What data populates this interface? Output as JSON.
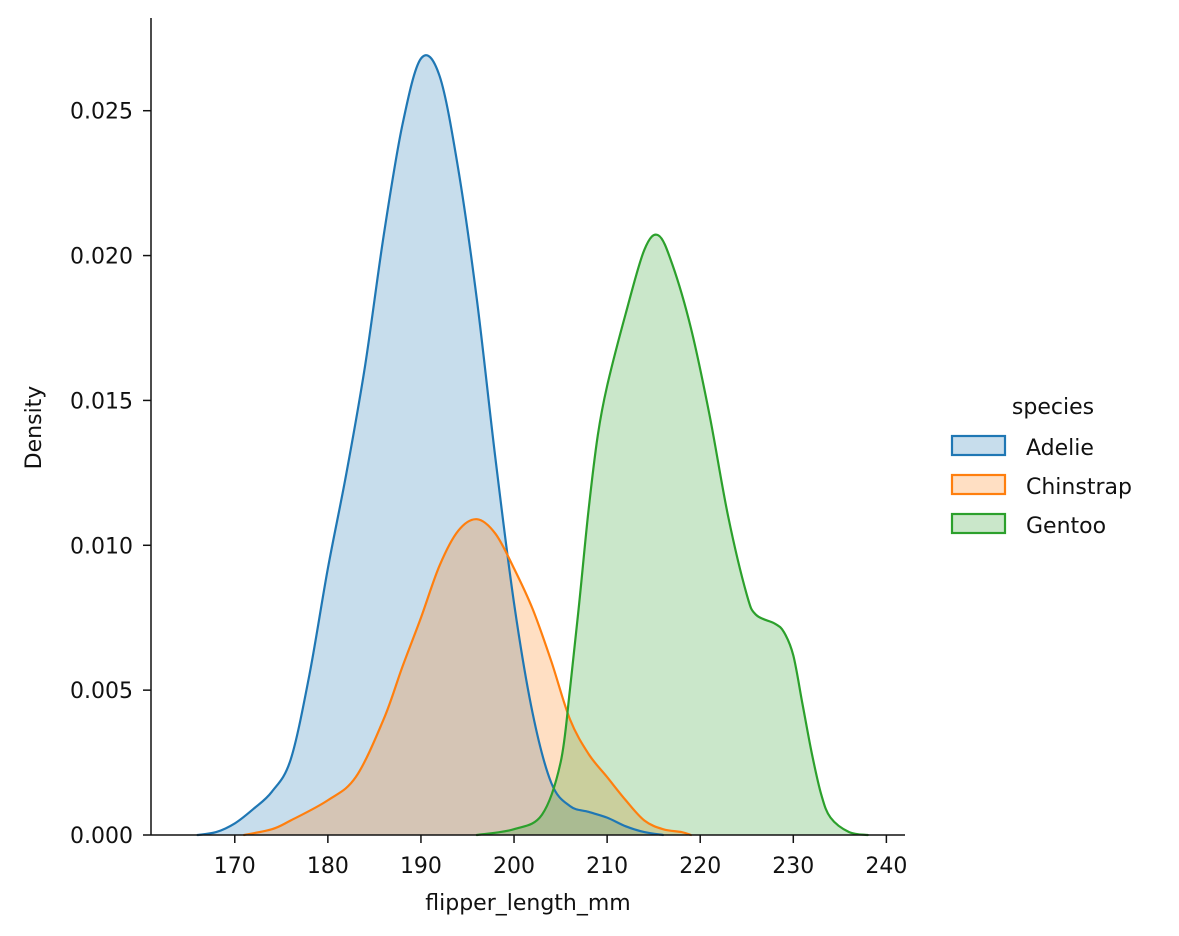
{
  "chart_data": {
    "type": "area",
    "title": "",
    "xlabel": "flipper_length_mm",
    "ylabel": "Density",
    "xlim": [
      161,
      242
    ],
    "ylim": [
      0,
      0.0282
    ],
    "xticks": [
      170,
      180,
      190,
      200,
      210,
      220,
      230,
      240
    ],
    "xtick_labels": [
      "170",
      "180",
      "190",
      "200",
      "210",
      "220",
      "230",
      "240"
    ],
    "yticks": [
      0.0,
      0.005,
      0.01,
      0.015,
      0.02,
      0.025
    ],
    "ytick_labels": [
      "0.000",
      "0.005",
      "0.010",
      "0.015",
      "0.020",
      "0.025"
    ],
    "grid": false,
    "legend": {
      "title": "species",
      "placement": "right",
      "entries": [
        "Adelie",
        "Chinstrap",
        "Gentoo"
      ]
    },
    "series": [
      {
        "name": "Adelie",
        "color": "#1f77b4",
        "points": [
          [
            166,
            0.0
          ],
          [
            168,
            0.0001
          ],
          [
            170,
            0.0004
          ],
          [
            172,
            0.0009
          ],
          [
            174,
            0.0015
          ],
          [
            176,
            0.0026
          ],
          [
            178,
            0.0055
          ],
          [
            180,
            0.0092
          ],
          [
            182,
            0.0125
          ],
          [
            184,
            0.0162
          ],
          [
            186,
            0.0207
          ],
          [
            188,
            0.0245
          ],
          [
            190,
            0.0268
          ],
          [
            192,
            0.0262
          ],
          [
            194,
            0.023
          ],
          [
            196,
            0.0185
          ],
          [
            198,
            0.013
          ],
          [
            200,
            0.008
          ],
          [
            202,
            0.0042
          ],
          [
            204,
            0.0018
          ],
          [
            206,
            0.001
          ],
          [
            208,
            0.0008
          ],
          [
            210,
            0.0006
          ],
          [
            212,
            0.0003
          ],
          [
            214,
            0.0001
          ],
          [
            216,
            0.0
          ]
        ]
      },
      {
        "name": "Chinstrap",
        "color": "#ff7f0e",
        "points": [
          [
            171,
            0.0
          ],
          [
            174,
            0.0002
          ],
          [
            176,
            0.0005
          ],
          [
            180,
            0.0012
          ],
          [
            183,
            0.002
          ],
          [
            186,
            0.004
          ],
          [
            188,
            0.0058
          ],
          [
            190,
            0.0075
          ],
          [
            192,
            0.0093
          ],
          [
            194,
            0.0105
          ],
          [
            196,
            0.0109
          ],
          [
            198,
            0.0104
          ],
          [
            200,
            0.0092
          ],
          [
            202,
            0.0078
          ],
          [
            204,
            0.006
          ],
          [
            206,
            0.004
          ],
          [
            208,
            0.0028
          ],
          [
            210,
            0.002
          ],
          [
            212,
            0.0012
          ],
          [
            214,
            0.0005
          ],
          [
            216,
            0.0002
          ],
          [
            218,
            0.0001
          ],
          [
            219,
            0.0
          ]
        ]
      },
      {
        "name": "Gentoo",
        "color": "#2ca02c",
        "points": [
          [
            196,
            0.0
          ],
          [
            200,
            0.0002
          ],
          [
            203,
            0.0007
          ],
          [
            205,
            0.0025
          ],
          [
            206,
            0.005
          ],
          [
            207,
            0.008
          ],
          [
            208,
            0.0112
          ],
          [
            209,
            0.0138
          ],
          [
            210,
            0.0155
          ],
          [
            212,
            0.018
          ],
          [
            214,
            0.0202
          ],
          [
            215.5,
            0.0207
          ],
          [
            217,
            0.0197
          ],
          [
            219,
            0.0175
          ],
          [
            221,
            0.0145
          ],
          [
            223,
            0.011
          ],
          [
            225,
            0.0083
          ],
          [
            226,
            0.0076
          ],
          [
            228,
            0.0073
          ],
          [
            229,
            0.007
          ],
          [
            230,
            0.0062
          ],
          [
            231,
            0.0045
          ],
          [
            232,
            0.0028
          ],
          [
            233,
            0.0014
          ],
          [
            234,
            0.0006
          ],
          [
            236,
            0.0001
          ],
          [
            238,
            0.0
          ]
        ]
      }
    ]
  }
}
